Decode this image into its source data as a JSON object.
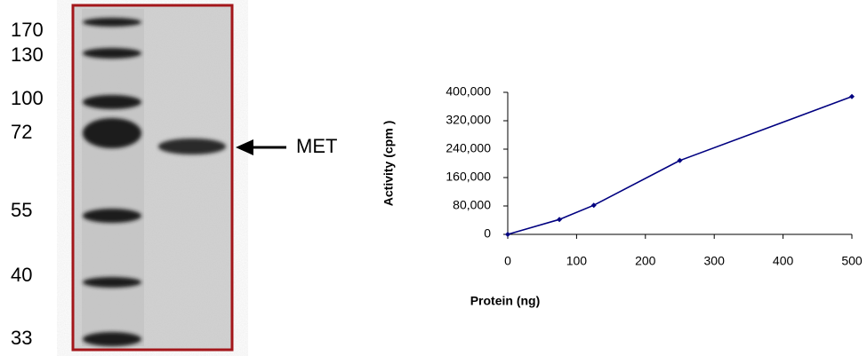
{
  "gel": {
    "markers": [
      170,
      130,
      100,
      72,
      55,
      40,
      33
    ],
    "band_label": "MET"
  },
  "chart_data": {
    "type": "line",
    "x_label": "Protein (ng)",
    "y_label": "Activity (cpm )",
    "x": [
      0,
      75,
      125,
      250,
      500
    ],
    "values": [
      0,
      42000,
      82000,
      208000,
      388000
    ],
    "color": "#000080",
    "xlim": [
      0,
      500
    ],
    "xticks": [
      0,
      100,
      200,
      300,
      400,
      500
    ],
    "ylim": [
      0,
      400000
    ],
    "yticks": [
      0,
      {
        "value": 80000,
        "label": "80,000"
      },
      {
        "value": 160000,
        "label": "160,000"
      },
      {
        "value": 240000,
        "label": "240,000"
      },
      {
        "value": 320000,
        "label": "320,000"
      },
      {
        "value": 400000,
        "label": "400,000"
      }
    ]
  }
}
